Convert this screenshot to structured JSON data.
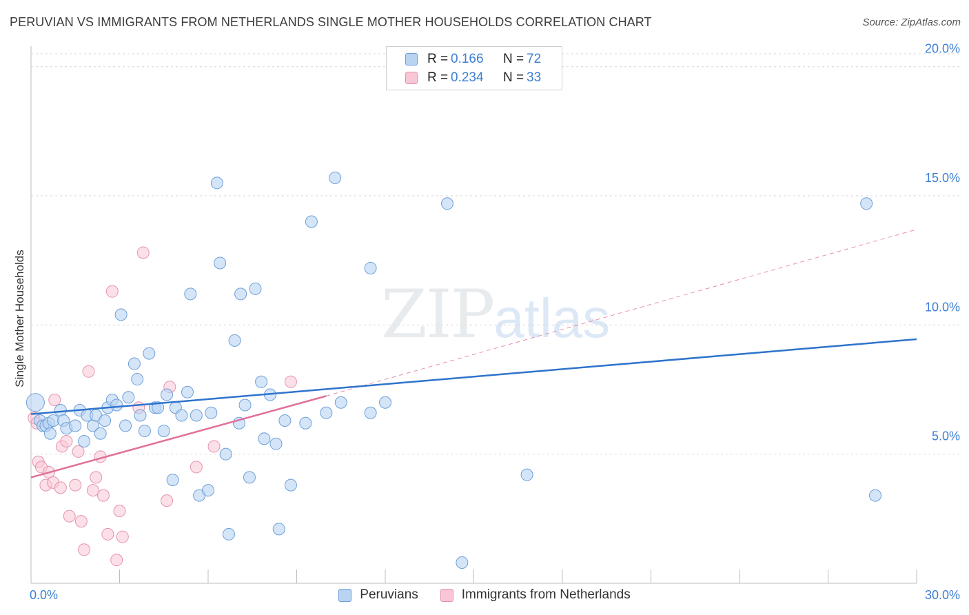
{
  "header": {
    "title": "PERUVIAN VS IMMIGRANTS FROM NETHERLANDS SINGLE MOTHER HOUSEHOLDS CORRELATION CHART",
    "source": "Source: ZipAtlas.com"
  },
  "watermark": {
    "zip": "ZIP",
    "atlas": "atlas"
  },
  "legend_top": {
    "rows": [
      {
        "r_label": "R =",
        "r_value": "0.166",
        "n_label": "N =",
        "n_value": "72"
      },
      {
        "r_label": "R =",
        "r_value": "0.234",
        "n_label": "N =",
        "n_value": "33"
      }
    ]
  },
  "colors": {
    "peruvians_fill": "#b9d3f3",
    "peruvians_stroke": "#6d9fd9",
    "peruvians_line": "#2e73cc",
    "netherlands_fill": "#f9c6d6",
    "netherlands_stroke": "#e592ae",
    "netherlands_line": "#e0709a",
    "axis_text": "#3d7fd4"
  },
  "chart_data": {
    "type": "scatter",
    "title": "PERUVIAN VS IMMIGRANTS FROM NETHERLANDS SINGLE MOTHER HOUSEHOLDS CORRELATION CHART",
    "xlabel": "",
    "ylabel": "Single Mother Households",
    "xlim": [
      0,
      30
    ],
    "ylim": [
      0,
      20.5
    ],
    "x_tick_labels": [
      "0.0%",
      "30.0%"
    ],
    "y_ticks": [
      5,
      10,
      15,
      20
    ],
    "y_tick_labels": [
      "5.0%",
      "10.0%",
      "15.0%",
      "20.0%"
    ],
    "grid": "horizontal dashed",
    "legend_placement": "top-center and bottom",
    "series": [
      {
        "name": "Peruvians",
        "r": 0.166,
        "n": 72,
        "trend": {
          "x": [
            0,
            30
          ],
          "y": [
            6.55,
            9.45
          ],
          "style": "solid"
        },
        "points": [
          [
            0.15,
            7.0
          ],
          [
            0.3,
            6.3
          ],
          [
            0.4,
            6.1
          ],
          [
            0.5,
            6.1
          ],
          [
            0.6,
            6.2
          ],
          [
            0.65,
            5.8
          ],
          [
            0.75,
            6.3
          ],
          [
            1.0,
            6.7
          ],
          [
            1.1,
            6.3
          ],
          [
            1.2,
            6.0
          ],
          [
            1.5,
            6.1
          ],
          [
            1.65,
            6.7
          ],
          [
            1.8,
            5.5
          ],
          [
            1.9,
            6.5
          ],
          [
            2.1,
            6.1
          ],
          [
            2.2,
            6.5
          ],
          [
            2.35,
            5.8
          ],
          [
            2.5,
            6.3
          ],
          [
            2.6,
            6.8
          ],
          [
            2.75,
            7.1
          ],
          [
            2.9,
            6.9
          ],
          [
            3.05,
            10.4
          ],
          [
            3.2,
            6.1
          ],
          [
            3.3,
            7.2
          ],
          [
            3.5,
            8.5
          ],
          [
            3.6,
            7.9
          ],
          [
            3.7,
            6.5
          ],
          [
            3.85,
            5.9
          ],
          [
            4.0,
            8.9
          ],
          [
            4.2,
            6.8
          ],
          [
            4.3,
            6.8
          ],
          [
            4.5,
            5.9
          ],
          [
            4.6,
            7.3
          ],
          [
            4.8,
            4.0
          ],
          [
            4.9,
            6.8
          ],
          [
            5.1,
            6.5
          ],
          [
            5.3,
            7.4
          ],
          [
            5.4,
            11.2
          ],
          [
            5.6,
            6.5
          ],
          [
            5.7,
            3.4
          ],
          [
            6.0,
            3.6
          ],
          [
            6.1,
            6.6
          ],
          [
            6.3,
            15.5
          ],
          [
            6.4,
            12.4
          ],
          [
            6.6,
            5.0
          ],
          [
            6.7,
            1.9
          ],
          [
            6.9,
            9.4
          ],
          [
            7.05,
            6.2
          ],
          [
            7.1,
            11.2
          ],
          [
            7.25,
            6.9
          ],
          [
            7.4,
            4.1
          ],
          [
            7.6,
            11.4
          ],
          [
            7.8,
            7.8
          ],
          [
            7.9,
            5.6
          ],
          [
            8.1,
            7.3
          ],
          [
            8.3,
            5.4
          ],
          [
            8.4,
            2.1
          ],
          [
            8.6,
            6.3
          ],
          [
            8.8,
            3.8
          ],
          [
            9.3,
            6.2
          ],
          [
            9.5,
            14.0
          ],
          [
            10.0,
            6.6
          ],
          [
            10.3,
            15.7
          ],
          [
            10.5,
            7.0
          ],
          [
            11.5,
            12.2
          ],
          [
            11.5,
            6.6
          ],
          [
            12.0,
            7.0
          ],
          [
            14.1,
            14.7
          ],
          [
            14.6,
            0.8
          ],
          [
            16.8,
            4.2
          ],
          [
            28.3,
            14.7
          ],
          [
            28.6,
            3.4
          ]
        ]
      },
      {
        "name": "Immigrants from Netherlands",
        "r": 0.234,
        "n": 33,
        "trend": {
          "x": [
            0,
            10
          ],
          "y": [
            4.1,
            7.25
          ],
          "style": "solid",
          "dashed_extension": {
            "x": [
              10,
              30
            ],
            "y": [
              7.25,
              13.7
            ]
          }
        },
        "points": [
          [
            0.1,
            6.4
          ],
          [
            0.2,
            6.2
          ],
          [
            0.25,
            4.7
          ],
          [
            0.35,
            4.5
          ],
          [
            0.5,
            3.8
          ],
          [
            0.6,
            4.3
          ],
          [
            0.75,
            3.9
          ],
          [
            0.8,
            7.1
          ],
          [
            1.0,
            3.7
          ],
          [
            1.05,
            5.3
          ],
          [
            1.2,
            5.5
          ],
          [
            1.3,
            2.6
          ],
          [
            1.5,
            3.8
          ],
          [
            1.6,
            5.1
          ],
          [
            1.7,
            2.4
          ],
          [
            1.8,
            1.3
          ],
          [
            1.95,
            8.2
          ],
          [
            2.1,
            3.6
          ],
          [
            2.2,
            4.1
          ],
          [
            2.35,
            4.9
          ],
          [
            2.45,
            3.4
          ],
          [
            2.6,
            1.9
          ],
          [
            2.75,
            11.3
          ],
          [
            2.9,
            0.9
          ],
          [
            3.0,
            2.8
          ],
          [
            3.1,
            1.8
          ],
          [
            3.65,
            6.8
          ],
          [
            3.8,
            12.8
          ],
          [
            4.6,
            3.2
          ],
          [
            4.7,
            7.6
          ],
          [
            5.6,
            4.5
          ],
          [
            6.2,
            5.3
          ],
          [
            8.8,
            7.8
          ]
        ]
      }
    ]
  },
  "legend_bottom": {
    "items": [
      {
        "label": "Peruvians"
      },
      {
        "label": "Immigrants from Netherlands"
      }
    ]
  }
}
